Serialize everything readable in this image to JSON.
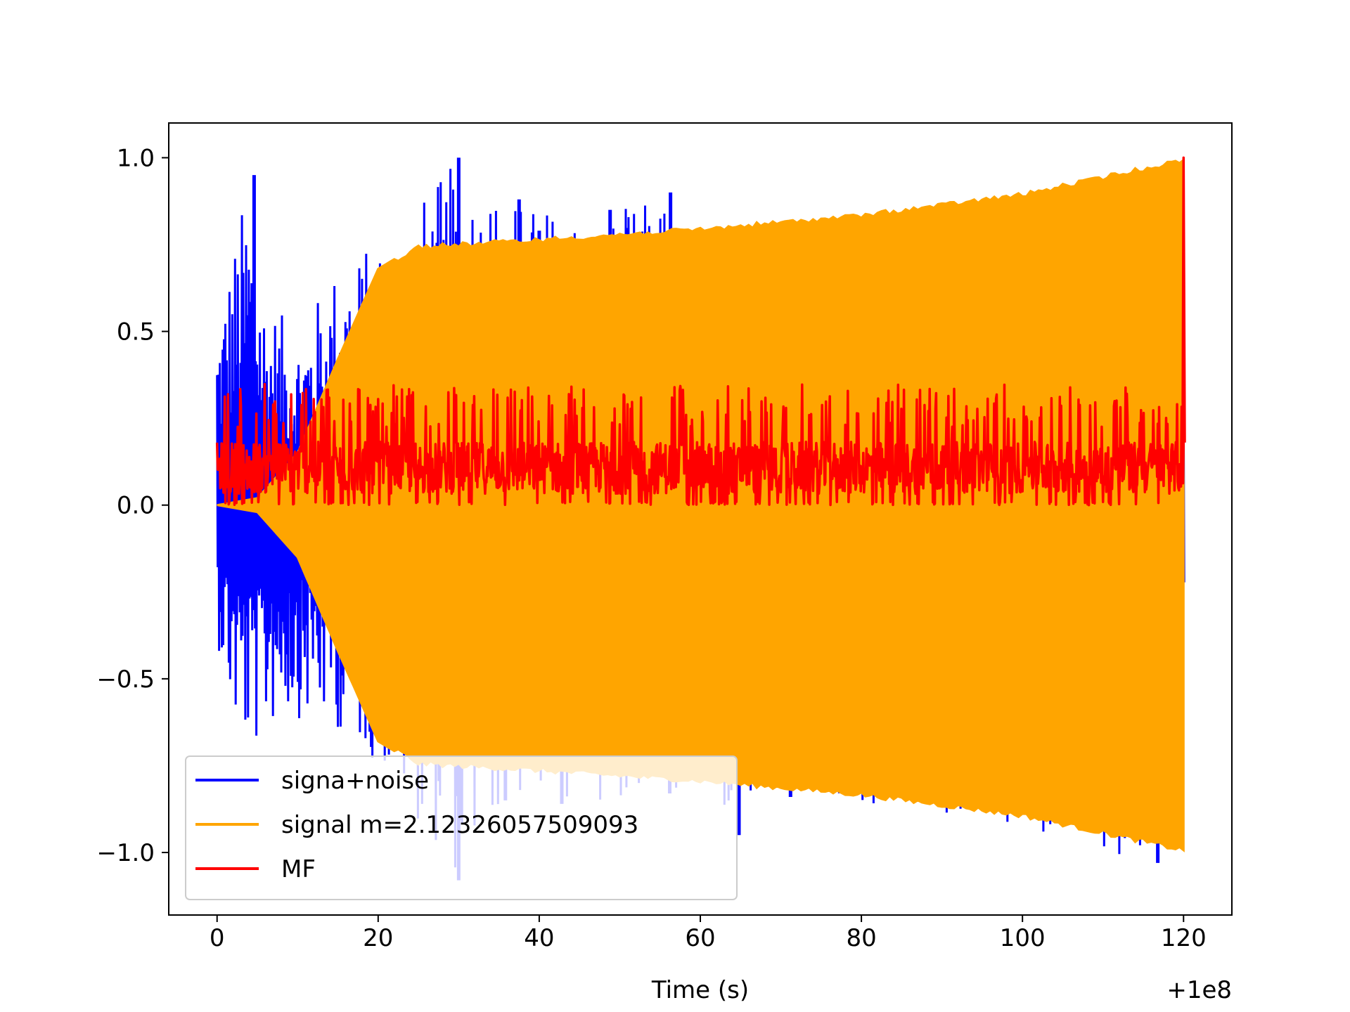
{
  "chart_data": {
    "type": "line",
    "xlabel": "Time (s)",
    "ylabel": "",
    "x_offset_text": "+1e8",
    "xlim": [
      -6,
      126
    ],
    "ylim": [
      -1.18,
      1.1
    ],
    "xticks": [
      0,
      20,
      40,
      60,
      80,
      100,
      120
    ],
    "xtick_labels": [
      "0",
      "20",
      "40",
      "60",
      "80",
      "100",
      "120"
    ],
    "yticks": [
      -1.0,
      -0.5,
      0.0,
      0.5,
      1.0
    ],
    "ytick_labels": [
      "−1.0",
      "−0.5",
      "0.0",
      "0.5",
      "1.0"
    ],
    "grid": false,
    "legend_position": "lower-left",
    "series": [
      {
        "name": "signa+noise",
        "color": "#0000ff",
        "x_range": [
          0,
          120
        ],
        "envelope_upper": [
          [
            0,
            0.55
          ],
          [
            2,
            0.75
          ],
          [
            4,
            0.95
          ],
          [
            6,
            0.6
          ],
          [
            10,
            0.5
          ],
          [
            15,
            0.7
          ],
          [
            20,
            0.76
          ],
          [
            30,
            1.0
          ],
          [
            37,
            0.88
          ],
          [
            49,
            0.85
          ],
          [
            56,
            0.9
          ],
          [
            60,
            0.4
          ],
          [
            120,
            0.4
          ]
        ],
        "envelope_lower": [
          [
            0,
            -0.4
          ],
          [
            2,
            -0.65
          ],
          [
            4,
            -0.73
          ],
          [
            8,
            -0.6
          ],
          [
            15,
            -0.65
          ],
          [
            20,
            -0.75
          ],
          [
            30,
            -1.08
          ],
          [
            36,
            -0.85
          ],
          [
            43,
            -0.86
          ],
          [
            56,
            -0.83
          ],
          [
            65,
            -0.95
          ],
          [
            71,
            -0.84
          ],
          [
            117,
            -1.03
          ],
          [
            120,
            -0.5
          ]
        ],
        "spikes": [
          [
            4.6,
            0.95
          ],
          [
            30.0,
            1.0
          ],
          [
            37.5,
            0.88
          ],
          [
            40.0,
            0.79
          ],
          [
            48.8,
            0.85
          ],
          [
            56.3,
            0.9
          ],
          [
            30.0,
            -1.08
          ],
          [
            35.8,
            -0.85
          ],
          [
            42.8,
            -0.86
          ],
          [
            56.2,
            -0.83
          ],
          [
            64.8,
            -0.95
          ],
          [
            71.2,
            -0.84
          ],
          [
            116.8,
            -1.03
          ]
        ]
      },
      {
        "name": "signal m=2.12326057509093",
        "color": "#ffa500",
        "x_range": [
          0,
          120
        ],
        "envelope": [
          [
            0,
            0.0
          ],
          [
            5,
            0.02
          ],
          [
            10,
            0.15
          ],
          [
            15,
            0.42
          ],
          [
            20,
            0.68
          ],
          [
            25,
            0.75
          ],
          [
            40,
            0.77
          ],
          [
            60,
            0.8
          ],
          [
            80,
            0.84
          ],
          [
            100,
            0.9
          ],
          [
            120,
            1.0
          ]
        ]
      },
      {
        "name": "MF",
        "color": "#ff0000",
        "x_range": [
          0,
          120
        ],
        "baseline": 0.1,
        "band": [
          0.0,
          0.35
        ],
        "peak": [
          120.0,
          1.0
        ]
      }
    ]
  }
}
